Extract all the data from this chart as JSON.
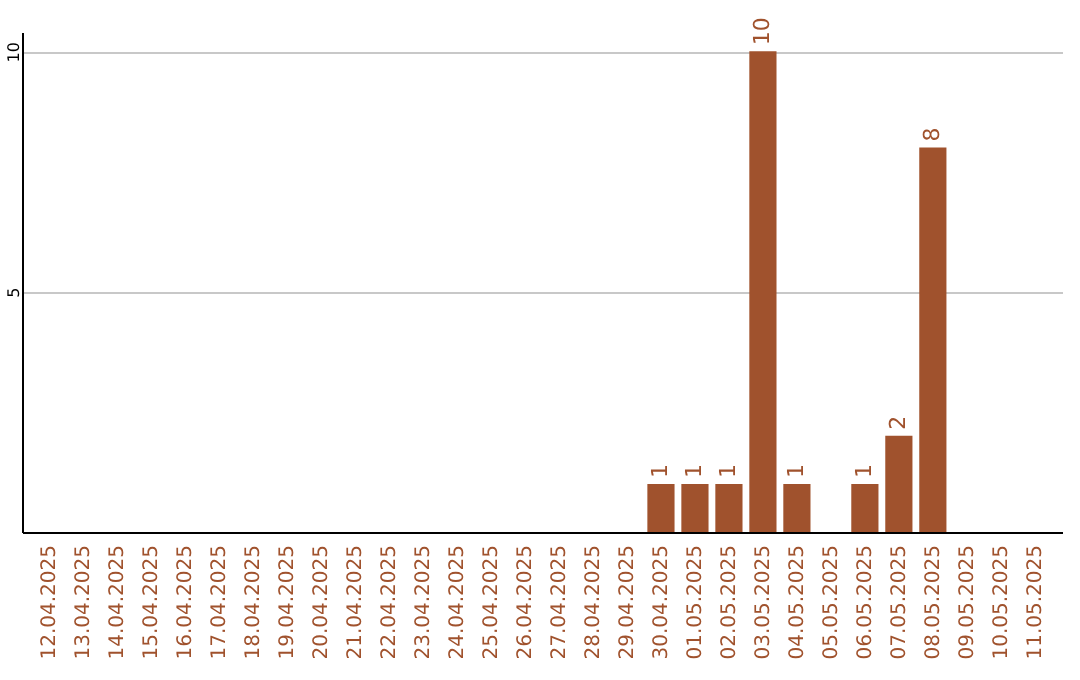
{
  "chart_data": {
    "type": "bar",
    "categories": [
      "12.04.2025",
      "13.04.2025",
      "14.04.2025",
      "15.04.2025",
      "16.04.2025",
      "17.04.2025",
      "18.04.2025",
      "19.04.2025",
      "20.04.2025",
      "21.04.2025",
      "22.04.2025",
      "23.04.2025",
      "24.04.2025",
      "25.04.2025",
      "26.04.2025",
      "27.04.2025",
      "28.04.2025",
      "29.04.2025",
      "30.04.2025",
      "01.05.2025",
      "02.05.2025",
      "03.05.2025",
      "04.05.2025",
      "05.05.2025",
      "06.05.2025",
      "07.05.2025",
      "08.05.2025",
      "09.05.2025",
      "10.05.2025",
      "11.05.2025"
    ],
    "values": [
      0,
      0,
      0,
      0,
      0,
      0,
      0,
      0,
      0,
      0,
      0,
      0,
      0,
      0,
      0,
      0,
      0,
      0,
      1,
      1,
      1,
      10,
      1,
      0,
      1,
      2,
      8,
      0,
      0,
      0
    ],
    "value_labels": [
      null,
      null,
      null,
      null,
      null,
      null,
      null,
      null,
      null,
      null,
      null,
      null,
      null,
      null,
      null,
      null,
      null,
      null,
      "1",
      "1",
      "1",
      "10",
      "1",
      null,
      "1",
      "2",
      "8",
      null,
      null,
      null
    ],
    "color": "#a0522d",
    "ylim": [
      0,
      10.4
    ],
    "yticks": [
      5,
      10
    ],
    "grid": "y"
  }
}
